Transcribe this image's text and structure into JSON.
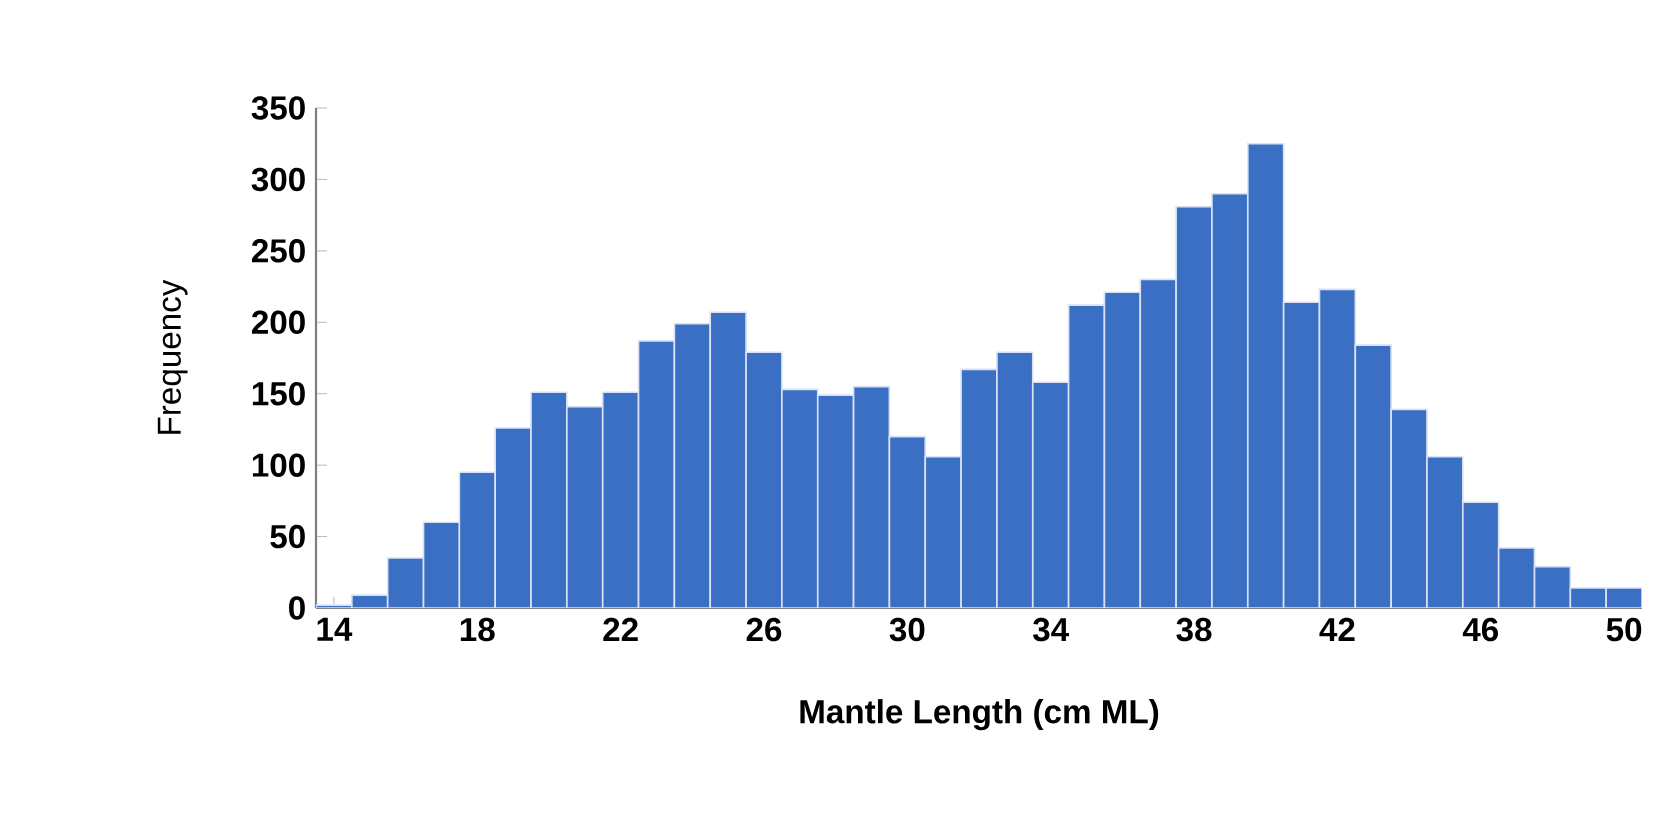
{
  "chart_data": {
    "type": "histogram",
    "xlabel": "Mantle Length (cm ML)",
    "ylabel": "Frequency",
    "bins": [
      13.5,
      14.5,
      15.5,
      16.5,
      17.5,
      18.5,
      19.5,
      20.5,
      21.5,
      22.5,
      23.5,
      24.5,
      25.5,
      26.5,
      27.5,
      28.5,
      29.5,
      30.5,
      31.5,
      32.5,
      33.5,
      34.5,
      35.5,
      36.5,
      37.5,
      38.5,
      39.5,
      40.5,
      41.5,
      42.5,
      43.5,
      44.5,
      45.5,
      46.5,
      47.5,
      48.5,
      49.5,
      50.5
    ],
    "values": [
      2,
      9,
      35,
      60,
      95,
      126,
      151,
      141,
      151,
      187,
      199,
      207,
      179,
      153,
      149,
      155,
      120,
      106,
      167,
      179,
      158,
      212,
      221,
      230,
      281,
      290,
      325,
      214,
      223,
      184,
      139,
      106,
      74,
      42,
      29,
      14,
      14
    ],
    "color": "#3a6fc4",
    "xlim": [
      13.5,
      50.5
    ],
    "xticks": [
      14,
      18,
      22,
      26,
      30,
      34,
      38,
      42,
      46,
      50
    ],
    "ylim": [
      0,
      350
    ],
    "yticks": [
      0,
      50,
      100,
      150,
      200,
      250,
      300,
      350
    ],
    "grid": false
  }
}
